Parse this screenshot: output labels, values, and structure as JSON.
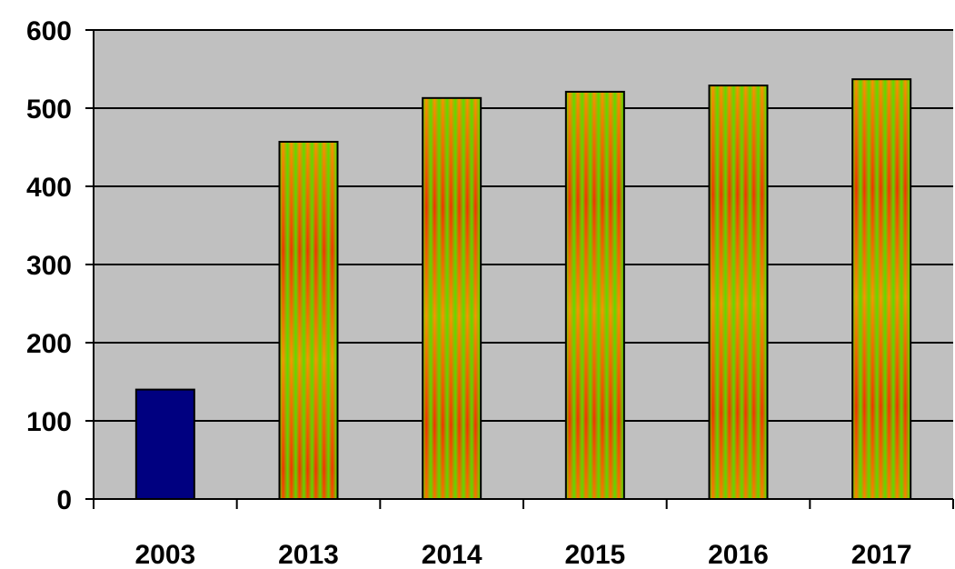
{
  "chart_data": {
    "type": "bar",
    "title": "",
    "xlabel": "",
    "ylabel": "",
    "categories": [
      "2003",
      "2013",
      "2014",
      "2015",
      "2016",
      "2017"
    ],
    "values": [
      140,
      457,
      513,
      521,
      529,
      537
    ],
    "ylim": [
      0,
      600
    ],
    "yticks": [
      0,
      100,
      200,
      300,
      400,
      500,
      600
    ],
    "grid": true,
    "legend": "none",
    "colors": {
      "plot_background": "#c0c0c0",
      "first_bar": "#000080",
      "patterned_bar_red": "#ff2a00",
      "patterned_bar_orange": "#ff9000",
      "patterned_bar_green": "#55e000",
      "gridline": "#000000"
    }
  }
}
